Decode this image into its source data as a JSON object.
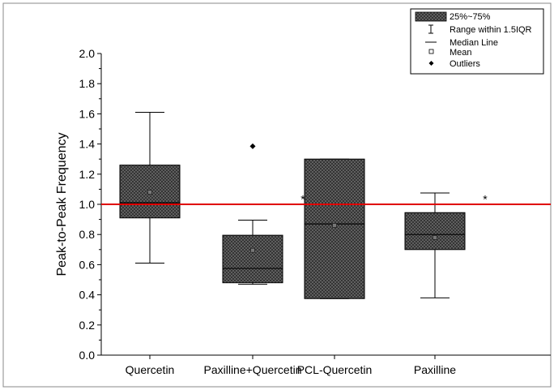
{
  "chart_data": {
    "type": "box",
    "title": "",
    "xlabel": "",
    "ylabel": "Peak-to-Peak Frequency",
    "ylim": [
      0,
      2.0
    ],
    "yticks": [
      "0.0",
      "0.2",
      "0.4",
      "0.6",
      "0.8",
      "1.0",
      "1.2",
      "1.4",
      "1.6",
      "1.8",
      "2.0"
    ],
    "grid": false,
    "reference_line": {
      "y": 1.0,
      "color": "#e00000"
    },
    "box_color": "#555555",
    "categories": [
      "Quercetin",
      "Paxilline+Quercetin",
      "PCL-Quercetin",
      "Paxilline"
    ],
    "boxes": [
      {
        "category": "Quercetin",
        "whisker_low": 0.61,
        "q1": 0.91,
        "median": 1.01,
        "q3": 1.26,
        "whisker_high": 1.61,
        "mean": 1.08,
        "outliers": [],
        "annotation": ""
      },
      {
        "category": "Paxilline+Quercetin",
        "whisker_low": 0.47,
        "q1": 0.48,
        "median": 0.575,
        "q3": 0.795,
        "whisker_high": 0.895,
        "mean": 0.695,
        "outliers": [
          1.385
        ],
        "annotation": "*"
      },
      {
        "category": "PCL-Quercetin",
        "whisker_low": 0.375,
        "q1": 0.375,
        "median": 0.87,
        "q3": 1.3,
        "whisker_high": 1.3,
        "mean": 0.86,
        "outliers": [],
        "annotation": ""
      },
      {
        "category": "Paxilline",
        "whisker_low": 0.38,
        "q1": 0.7,
        "median": 0.8,
        "q3": 0.945,
        "whisker_high": 1.075,
        "mean": 0.78,
        "outliers": [],
        "annotation": "*"
      }
    ],
    "legend": {
      "position": "top-right",
      "entries": [
        "25%~75%",
        "Range within 1.5IQR",
        "Median Line",
        "Mean",
        "Outliers"
      ]
    }
  }
}
